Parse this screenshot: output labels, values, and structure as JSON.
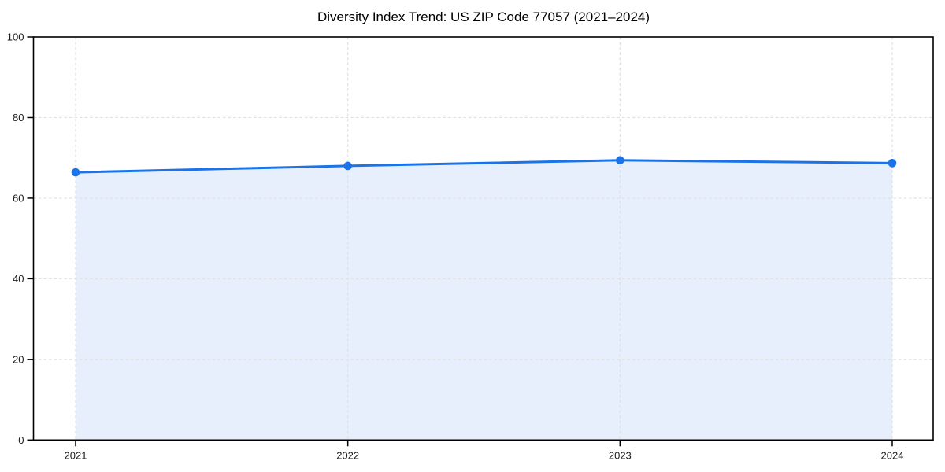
{
  "chart_data": {
    "type": "line",
    "title": "Diversity Index Trend: US ZIP Code 77057 (2021–2024)",
    "x": [
      "2021",
      "2022",
      "2023",
      "2024"
    ],
    "series": [
      {
        "name": "Diversity Index",
        "values": [
          66.4,
          68.0,
          69.4,
          68.7
        ]
      }
    ],
    "xlabel": "",
    "ylabel": "",
    "ylim": [
      0,
      100
    ],
    "yticks": [
      0,
      20,
      40,
      60,
      80,
      100
    ],
    "grid": true,
    "grid_style": "dashed",
    "legend": "none",
    "area_fill": true,
    "markers": true,
    "colors": {
      "line": "#1a73e8",
      "marker": "#1a73e8",
      "area_fill": "#e7effc",
      "grid": "#e0e0e0",
      "axis": "#000000",
      "title": "#000000",
      "tick_label": "#1a1a1a",
      "background": "#ffffff"
    }
  }
}
